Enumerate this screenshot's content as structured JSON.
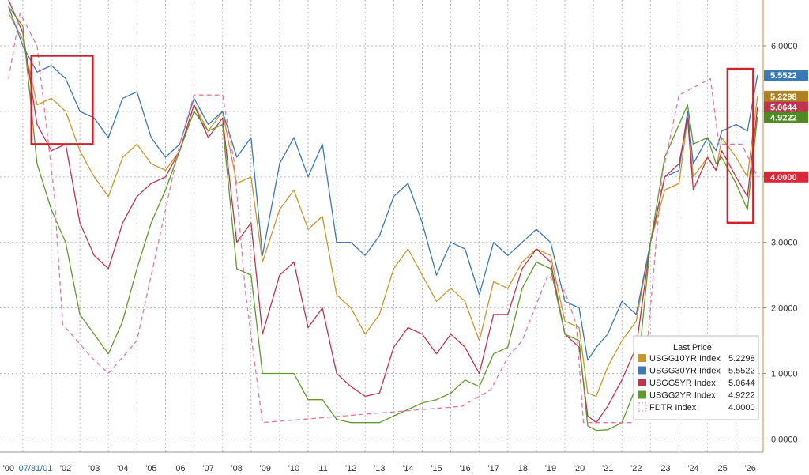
{
  "chart_data": {
    "type": "line",
    "title": "",
    "xlabel": "",
    "ylabel": "",
    "ylim": [
      -0.2,
      6.7
    ],
    "xlim": [
      1999.7,
      2026.45
    ],
    "grid": true,
    "legend_position": "bottom-right",
    "legend_header": "Last Price",
    "date_flag": "07/31/01",
    "y_ticks": [
      "0.0000",
      "1.0000",
      "2.0000",
      "3.0000",
      "4.0000",
      "5.0000",
      "6.0000"
    ],
    "y_tick_values": [
      0,
      1,
      2,
      3,
      4,
      5,
      6
    ],
    "x_ticks": [
      "'00",
      "'01",
      "'02",
      "'03",
      "'04",
      "'05",
      "'06",
      "'07",
      "'08",
      "'09",
      "'10",
      "'11",
      "'12",
      "'13",
      "'14",
      "'15",
      "'16",
      "'17",
      "'18",
      "'19",
      "'20",
      "'21",
      "'22",
      "'23",
      "'24",
      "'25",
      "'26"
    ],
    "x_tick_values": [
      2000,
      2001,
      2002,
      2003,
      2004,
      2005,
      2006,
      2007,
      2008,
      2009,
      2010,
      2011,
      2012,
      2013,
      2014,
      2015,
      2016,
      2017,
      2018,
      2019,
      2020,
      2021,
      2022,
      2023,
      2024,
      2025,
      2026
    ],
    "highlight_boxes": [
      {
        "x": [
          2000.8,
          2002.95
        ],
        "y": [
          4.5,
          5.85
        ]
      },
      {
        "x": [
          2025.2,
          2026.1
        ],
        "y": [
          3.3,
          5.65
        ]
      }
    ],
    "series": [
      {
        "name": "USGG10YR Index",
        "last": "5.2298",
        "color": "#c8962e",
        "style": "solid",
        "x": [
          2000.0,
          2000.5,
          2001.0,
          2001.5,
          2002.0,
          2002.5,
          2003.0,
          2003.5,
          2004.0,
          2004.5,
          2005.0,
          2005.5,
          2006.0,
          2006.5,
          2007.0,
          2007.5,
          2008.0,
          2008.5,
          2008.9,
          2009.5,
          2010.0,
          2010.5,
          2011.0,
          2011.5,
          2012.0,
          2012.5,
          2013.0,
          2013.5,
          2014.0,
          2014.5,
          2015.0,
          2015.5,
          2016.0,
          2016.5,
          2017.0,
          2017.5,
          2018.0,
          2018.5,
          2019.0,
          2019.5,
          2020.0,
          2020.3,
          2020.6,
          2021.0,
          2021.5,
          2022.0,
          2022.5,
          2023.0,
          2023.5,
          2023.8,
          2024.0,
          2024.5,
          2024.8,
          2025.0,
          2025.5,
          2025.9,
          2026.25
        ],
        "y": [
          6.5,
          6.1,
          5.1,
          5.2,
          5.0,
          4.4,
          4.0,
          3.7,
          4.3,
          4.5,
          4.2,
          4.1,
          4.4,
          5.1,
          4.7,
          5.0,
          3.9,
          4.0,
          2.7,
          3.5,
          3.8,
          3.2,
          3.4,
          2.2,
          2.0,
          1.6,
          1.9,
          2.6,
          2.9,
          2.5,
          2.1,
          2.3,
          2.1,
          1.5,
          2.4,
          2.3,
          2.7,
          2.9,
          2.8,
          1.8,
          1.7,
          0.7,
          0.65,
          1.1,
          1.5,
          1.8,
          3.0,
          3.8,
          3.9,
          4.9,
          4.0,
          4.3,
          4.1,
          4.6,
          4.3,
          4.0,
          5.23
        ]
      },
      {
        "name": "USGG30YR Index",
        "last": "5.5522",
        "color": "#3d78b7",
        "style": "solid",
        "x": [
          2000.0,
          2000.5,
          2001.0,
          2001.5,
          2002.0,
          2002.5,
          2003.0,
          2003.5,
          2004.0,
          2004.5,
          2005.0,
          2005.5,
          2006.0,
          2006.5,
          2007.0,
          2007.5,
          2008.0,
          2008.5,
          2008.9,
          2009.5,
          2010.0,
          2010.5,
          2011.0,
          2011.5,
          2012.0,
          2012.5,
          2013.0,
          2013.5,
          2014.0,
          2014.5,
          2015.0,
          2015.5,
          2016.0,
          2016.5,
          2017.0,
          2017.5,
          2018.0,
          2018.5,
          2019.0,
          2019.5,
          2020.0,
          2020.3,
          2020.6,
          2021.0,
          2021.5,
          2022.0,
          2022.5,
          2023.0,
          2023.5,
          2023.8,
          2024.0,
          2024.5,
          2024.8,
          2025.0,
          2025.5,
          2025.9,
          2026.25
        ],
        "y": [
          6.6,
          6.0,
          5.6,
          5.7,
          5.5,
          5.0,
          4.9,
          4.6,
          5.2,
          5.3,
          4.6,
          4.3,
          4.5,
          5.2,
          4.8,
          5.0,
          4.3,
          4.6,
          2.8,
          4.2,
          4.6,
          4.0,
          4.5,
          3.0,
          3.0,
          2.8,
          3.1,
          3.7,
          3.9,
          3.3,
          2.5,
          3.0,
          2.9,
          2.2,
          3.0,
          2.8,
          3.0,
          3.2,
          3.0,
          2.1,
          2.0,
          1.2,
          1.4,
          1.6,
          2.1,
          1.9,
          3.0,
          4.0,
          4.1,
          5.0,
          4.2,
          4.6,
          4.4,
          4.7,
          4.8,
          4.7,
          5.55
        ]
      },
      {
        "name": "USGG5YR Index",
        "last": "5.0644",
        "color": "#c0334d",
        "style": "solid",
        "x": [
          2000.0,
          2000.5,
          2001.0,
          2001.5,
          2002.0,
          2002.5,
          2003.0,
          2003.5,
          2004.0,
          2004.5,
          2005.0,
          2005.5,
          2006.0,
          2006.5,
          2007.0,
          2007.5,
          2008.0,
          2008.5,
          2008.9,
          2009.5,
          2010.0,
          2010.5,
          2011.0,
          2011.5,
          2012.0,
          2012.5,
          2013.0,
          2013.5,
          2014.0,
          2014.5,
          2015.0,
          2015.5,
          2016.0,
          2016.5,
          2017.0,
          2017.5,
          2018.0,
          2018.5,
          2019.0,
          2019.5,
          2020.0,
          2020.3,
          2020.6,
          2021.0,
          2021.5,
          2022.0,
          2022.5,
          2023.0,
          2023.5,
          2023.8,
          2024.0,
          2024.5,
          2024.8,
          2025.0,
          2025.5,
          2025.9,
          2026.25
        ],
        "y": [
          6.7,
          6.2,
          4.8,
          4.4,
          4.5,
          3.3,
          2.8,
          2.6,
          3.3,
          3.7,
          3.9,
          4.0,
          4.4,
          5.1,
          4.6,
          4.9,
          3.0,
          3.3,
          1.6,
          2.5,
          2.7,
          1.7,
          2.0,
          1.0,
          0.8,
          0.65,
          0.7,
          1.4,
          1.7,
          1.6,
          1.3,
          1.6,
          1.4,
          1.0,
          1.9,
          1.9,
          2.6,
          2.9,
          2.7,
          1.6,
          1.4,
          0.35,
          0.25,
          0.5,
          0.9,
          1.4,
          3.0,
          4.0,
          4.2,
          4.9,
          3.8,
          4.3,
          4.1,
          4.4,
          4.0,
          3.7,
          5.06
        ]
      },
      {
        "name": "USGG2YR Index",
        "last": "4.9222",
        "color": "#5e9a30",
        "style": "solid",
        "x": [
          2000.0,
          2000.5,
          2001.0,
          2001.5,
          2002.0,
          2002.5,
          2003.0,
          2003.5,
          2004.0,
          2004.5,
          2005.0,
          2005.5,
          2006.0,
          2006.5,
          2007.0,
          2007.5,
          2008.0,
          2008.5,
          2008.9,
          2009.5,
          2010.0,
          2010.5,
          2011.0,
          2011.5,
          2012.0,
          2012.5,
          2013.0,
          2013.5,
          2014.0,
          2014.5,
          2015.0,
          2015.5,
          2016.0,
          2016.5,
          2017.0,
          2017.5,
          2018.0,
          2018.5,
          2019.0,
          2019.5,
          2020.0,
          2020.3,
          2020.6,
          2021.0,
          2021.5,
          2022.0,
          2022.5,
          2023.0,
          2023.5,
          2023.8,
          2024.0,
          2024.5,
          2024.8,
          2025.0,
          2025.5,
          2025.9,
          2026.25
        ],
        "y": [
          6.6,
          6.3,
          4.2,
          3.5,
          3.0,
          1.9,
          1.6,
          1.3,
          1.8,
          2.6,
          3.3,
          3.8,
          4.4,
          5.0,
          4.7,
          4.8,
          2.6,
          2.5,
          1.0,
          1.0,
          1.0,
          0.6,
          0.6,
          0.3,
          0.25,
          0.25,
          0.25,
          0.35,
          0.45,
          0.55,
          0.6,
          0.7,
          0.9,
          0.8,
          1.3,
          1.4,
          2.3,
          2.7,
          2.6,
          1.6,
          1.5,
          0.2,
          0.13,
          0.14,
          0.25,
          0.8,
          3.0,
          4.3,
          4.8,
          5.1,
          4.5,
          4.6,
          4.2,
          4.3,
          3.9,
          3.5,
          4.92
        ]
      },
      {
        "name": "FDTR Index",
        "last": "4.0000",
        "color": "#e07aa0",
        "style": "dashed",
        "x": [
          2000.0,
          2000.4,
          2001.0,
          2001.6,
          2001.9,
          2002.9,
          2003.5,
          2004.5,
          2005.0,
          2006.0,
          2006.5,
          2007.5,
          2007.9,
          2008.3,
          2008.9,
          2015.9,
          2016.9,
          2017.5,
          2018.0,
          2018.9,
          2019.5,
          2019.9,
          2020.15,
          2021.9,
          2022.3,
          2022.9,
          2023.5,
          2024.6,
          2024.9,
          2025.7,
          2026.25
        ],
        "y": [
          5.5,
          6.5,
          6.0,
          3.75,
          1.75,
          1.25,
          1.0,
          1.5,
          2.5,
          4.5,
          5.25,
          5.25,
          4.25,
          2.25,
          0.25,
          0.5,
          0.75,
          1.25,
          1.5,
          2.5,
          2.25,
          1.75,
          0.25,
          0.25,
          1.0,
          4.0,
          5.25,
          5.5,
          4.5,
          4.5,
          4.0
        ]
      }
    ]
  }
}
